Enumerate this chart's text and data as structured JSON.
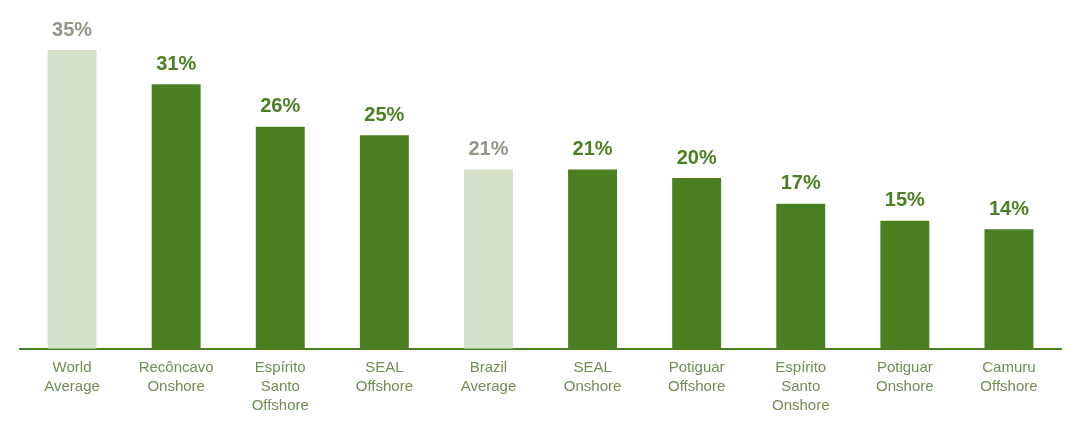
{
  "chart_data": {
    "type": "bar",
    "categories": [
      "World Average",
      "Recôncavo Onshore",
      "Espírito Santo Offshore",
      "SEAL Offshore",
      "Brazil Average",
      "SEAL Onshore",
      "Potiguar Offshore",
      "Espírito Santo Onshore",
      "Potiguar Onshore",
      "Camuru Offshore"
    ],
    "values": [
      35,
      31,
      26,
      25,
      21,
      21,
      20,
      17,
      15,
      14
    ],
    "colors": [
      "#d5e0c9",
      "#4a7f22",
      "#4a7f22",
      "#4a7f22",
      "#d5e0c9",
      "#4a7f22",
      "#4a7f22",
      "#4a7f22",
      "#4a7f22",
      "#4a7f22"
    ],
    "value_labels": [
      "35%",
      "31%",
      "26%",
      "25%",
      "21%",
      "21%",
      "20%",
      "17%",
      "15%",
      "14%"
    ],
    "grid": false,
    "legend": false
  }
}
